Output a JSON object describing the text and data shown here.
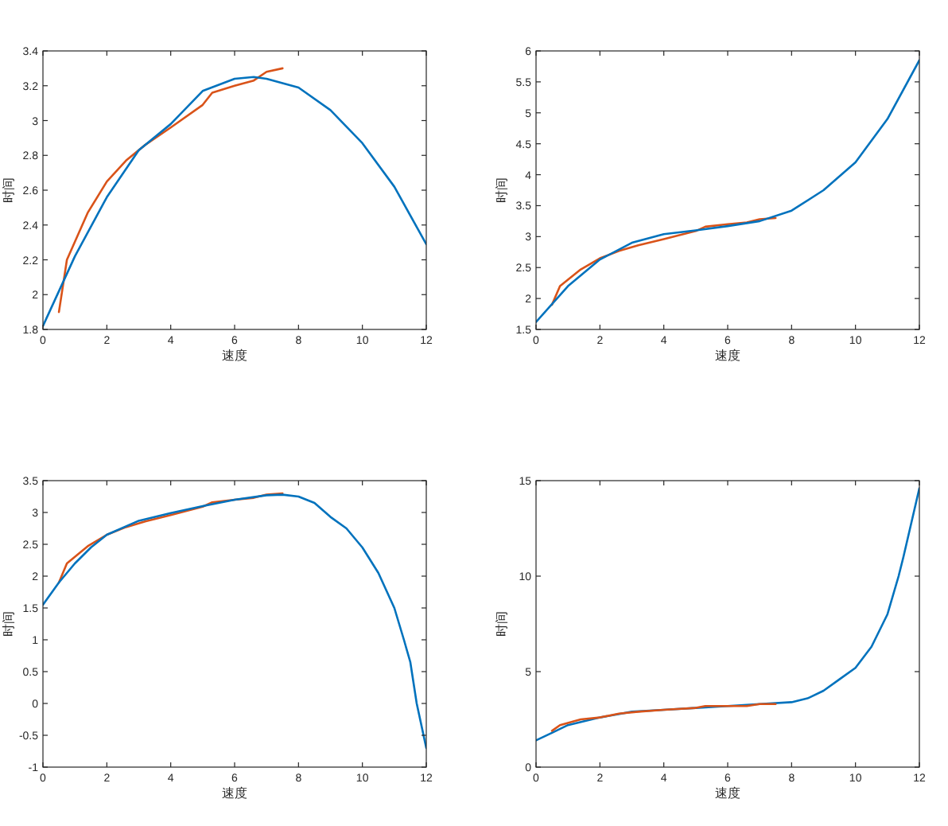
{
  "chart_data": [
    {
      "type": "line",
      "xlabel": "速度",
      "ylabel": "时间",
      "xlim": [
        0,
        12
      ],
      "ylim": [
        1.8,
        3.4
      ],
      "xticks": [
        0,
        2,
        4,
        6,
        8,
        10,
        12
      ],
      "yticks": [
        1.8,
        2,
        2.2,
        2.4,
        2.6,
        2.8,
        3,
        3.2,
        3.4
      ],
      "series": [
        {
          "color": "#d95319",
          "x": [
            0.5,
            0.75,
            1.4,
            2,
            2.6,
            3.2,
            4,
            5,
            5.3,
            6,
            6.6,
            7,
            7.5
          ],
          "values": [
            1.9,
            2.2,
            2.47,
            2.65,
            2.77,
            2.86,
            2.96,
            3.09,
            3.16,
            3.2,
            3.23,
            3.28,
            3.3
          ]
        },
        {
          "color": "#0072bd",
          "x": [
            0,
            1,
            2,
            3,
            4,
            5,
            6,
            6.6,
            7,
            8,
            9,
            10,
            11,
            12
          ],
          "values": [
            1.82,
            2.22,
            2.56,
            2.83,
            2.98,
            3.17,
            3.24,
            3.25,
            3.24,
            3.19,
            3.06,
            2.87,
            2.62,
            2.29
          ]
        }
      ]
    },
    {
      "type": "line",
      "xlabel": "速度",
      "ylabel": "时间",
      "xlim": [
        0,
        12
      ],
      "ylim": [
        1.5,
        6
      ],
      "xticks": [
        0,
        2,
        4,
        6,
        8,
        10,
        12
      ],
      "yticks": [
        1.5,
        2,
        2.5,
        3,
        3.5,
        4,
        4.5,
        5,
        5.5,
        6
      ],
      "series": [
        {
          "color": "#d95319",
          "x": [
            0.5,
            0.75,
            1.4,
            2,
            2.6,
            3.2,
            4,
            5,
            5.3,
            6,
            6.6,
            7,
            7.5
          ],
          "values": [
            1.9,
            2.2,
            2.47,
            2.65,
            2.77,
            2.86,
            2.96,
            3.09,
            3.16,
            3.2,
            3.23,
            3.28,
            3.3
          ]
        },
        {
          "color": "#0072bd",
          "x": [
            0,
            1,
            2,
            3,
            4,
            5,
            6,
            7,
            8,
            9,
            10,
            11,
            12
          ],
          "values": [
            1.62,
            2.2,
            2.63,
            2.9,
            3.04,
            3.1,
            3.17,
            3.25,
            3.42,
            3.75,
            4.2,
            4.9,
            5.85
          ]
        }
      ]
    },
    {
      "type": "line",
      "xlabel": "速度",
      "ylabel": "时间",
      "xlim": [
        0,
        12
      ],
      "ylim": [
        -1,
        3.5
      ],
      "xticks": [
        0,
        2,
        4,
        6,
        8,
        10,
        12
      ],
      "yticks": [
        -1,
        -0.5,
        0,
        0.5,
        1,
        1.5,
        2,
        2.5,
        3,
        3.5
      ],
      "series": [
        {
          "color": "#d95319",
          "x": [
            0.5,
            0.75,
            1.4,
            2,
            2.6,
            3.2,
            4,
            5,
            5.3,
            6,
            6.6,
            7,
            7.5
          ],
          "values": [
            1.9,
            2.2,
            2.47,
            2.65,
            2.77,
            2.86,
            2.96,
            3.09,
            3.16,
            3.2,
            3.23,
            3.28,
            3.3
          ]
        },
        {
          "color": "#0072bd",
          "x": [
            0,
            0.5,
            1,
            1.5,
            2,
            3,
            4,
            5,
            6,
            7,
            7.5,
            8,
            8.5,
            9,
            9.5,
            10,
            10.5,
            11,
            11.3,
            11.5,
            11.7,
            12
          ],
          "values": [
            1.55,
            1.9,
            2.2,
            2.45,
            2.65,
            2.87,
            2.99,
            3.1,
            3.2,
            3.27,
            3.28,
            3.25,
            3.15,
            2.93,
            2.75,
            2.45,
            2.05,
            1.5,
            1.0,
            0.65,
            0.0,
            -0.7
          ]
        }
      ]
    },
    {
      "type": "line",
      "xlabel": "速度",
      "ylabel": "时间",
      "xlim": [
        0,
        12
      ],
      "ylim": [
        0,
        15
      ],
      "xticks": [
        0,
        2,
        4,
        6,
        8,
        10,
        12
      ],
      "yticks": [
        0,
        5,
        10,
        15
      ],
      "series": [
        {
          "color": "#0072bd",
          "x": [
            0,
            0.5,
            1,
            2,
            3,
            4,
            5,
            6,
            7,
            8,
            8.5,
            9,
            9.5,
            10,
            10.5,
            11,
            11.35,
            11.5,
            12
          ],
          "values": [
            1.4,
            1.8,
            2.2,
            2.6,
            2.9,
            3.0,
            3.1,
            3.2,
            3.3,
            3.4,
            3.6,
            4.0,
            4.6,
            5.2,
            6.3,
            8.0,
            10,
            11,
            14.6
          ]
        },
        {
          "color": "#d95319",
          "x": [
            0.5,
            0.75,
            1.4,
            2,
            2.6,
            3.2,
            4,
            5,
            5.3,
            6,
            6.6,
            7,
            7.5
          ],
          "values": [
            1.9,
            2.2,
            2.5,
            2.6,
            2.8,
            2.9,
            3.0,
            3.1,
            3.2,
            3.2,
            3.2,
            3.3,
            3.3
          ]
        }
      ]
    }
  ]
}
